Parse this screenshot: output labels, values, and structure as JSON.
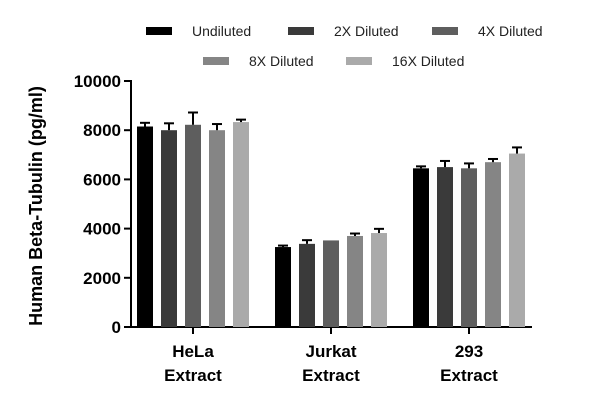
{
  "chart_data": {
    "type": "bar",
    "ylabel": "Human Beta-Tubulin (pg/ml)",
    "xlabel": "",
    "ylim": [
      0,
      10000
    ],
    "yticks": [
      0,
      2000,
      4000,
      6000,
      8000,
      10000
    ],
    "grid": false,
    "legend_position": "top",
    "categories": [
      {
        "line1": "HeLa",
        "line2": "Extract"
      },
      {
        "line1": "Jurkat",
        "line2": "Extract"
      },
      {
        "line1": "293",
        "line2": "Extract"
      }
    ],
    "series": [
      {
        "name": "Undiluted",
        "color": "#000000",
        "values": [
          8150,
          3250,
          6450
        ],
        "errors": [
          150,
          60,
          80
        ]
      },
      {
        "name": "2X Diluted",
        "color": "#3a3a3a",
        "values": [
          8000,
          3380,
          6500
        ],
        "errors": [
          280,
          150,
          250
        ]
      },
      {
        "name": "4X Diluted",
        "color": "#5e5e5e",
        "values": [
          8220,
          3520,
          6450
        ],
        "errors": [
          500,
          0,
          200
        ]
      },
      {
        "name": "8X Diluted",
        "color": "#858585",
        "values": [
          8000,
          3700,
          6700
        ],
        "errors": [
          250,
          100,
          130
        ]
      },
      {
        "name": "16X Diluted",
        "color": "#aaaaaa",
        "values": [
          8330,
          3820,
          7050
        ],
        "errors": [
          100,
          170,
          250
        ]
      }
    ]
  }
}
